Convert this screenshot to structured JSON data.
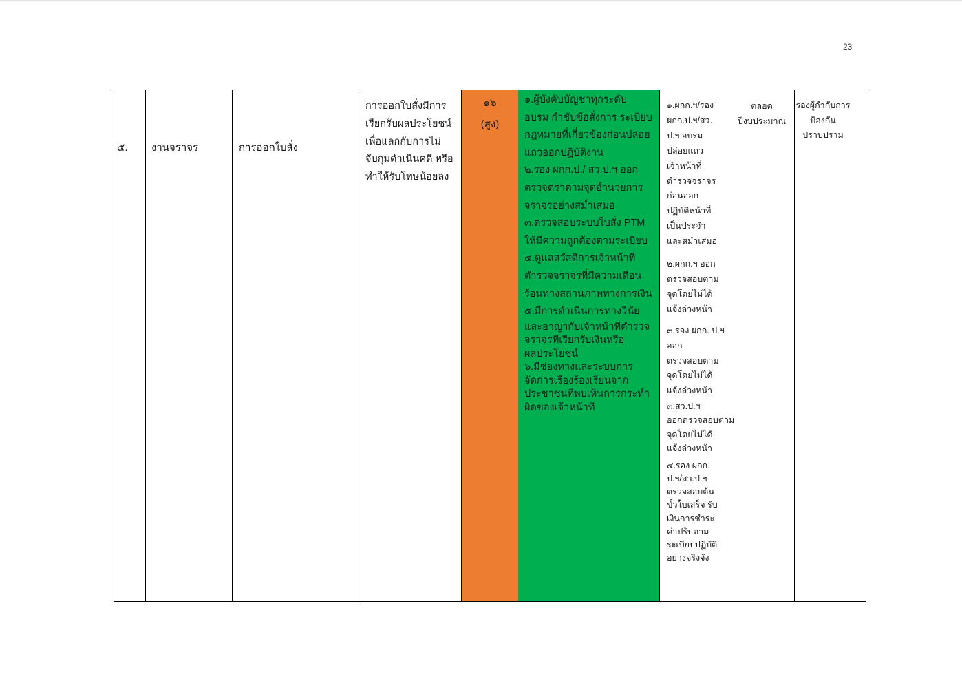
{
  "page": {
    "number": "23"
  },
  "colors": {
    "risk_high": "#ED7D31",
    "control_measures": "#00B050"
  },
  "row": {
    "no": "๕.",
    "mission": "งานจราจร",
    "process": "การออกใบสั่ง",
    "risk_event": [
      "การออกใบสั่งมีการ",
      "เรียกรับผลประโยชน์",
      "เพื่อแลกกับการไม่",
      "จับกุมดำเนินคดี หรือ",
      "ทำให้รับโทษน้อยลง"
    ],
    "risk_level": {
      "score": "๑๖",
      "label": "(สูง)"
    },
    "control_measures": [
      "๑.ผู้บังคับบัญชาทุกระดับ",
      "อบรม กำชับข้อสั่งการ ระเบียบ",
      "กฎหมายที่เกี่ยวข้องก่อนปล่อย",
      "แถวออกปฏิบัติงาน",
      "๒.รอง ผกก.ป./ สว.ป.ฯ ออก",
      "ตรวจตราตามจุดอำนวยการ",
      "จราจรอย่างสม่ำเสมอ",
      "๓.ตรวจสอบระบบใบสั่ง PTM",
      "ให้มีความถูกต้องตามระเบียบ",
      "๔.ดูแลสวัสดิการเจ้าหน้าที่",
      "ตำรวจจราจรที่มีความเดือน",
      "ร้อนทางสถานภาพทางการเงิน",
      "๕.มีการดำเนินการทางวินัย",
      "และอาญากับเจ้าหน้าที่ตำรวจ",
      "จราจรที่เรียกรับเงินหรือ",
      "ผลประโยชน์",
      "๖.มีช่องทางและระบบการ",
      "จัดการเรื่องร้องเรียนจาก",
      "ประชาชนที่พบเห็นการกระทำ",
      "ผิดของเจ้าหน้าที่"
    ],
    "actions": [
      [
        "๑.ผกก.ฯ/รอง",
        "ผกก.ป.ฯ/สว.",
        "ป.ฯ อบรม",
        "ปล่อยแถว",
        "เจ้าหน้าที่",
        "ตำรวจจราจร",
        "ก่อนออก",
        "ปฏิบัติหน้าที่",
        "เป็นประจำ",
        "และสม่ำเสมอ"
      ],
      [
        "๒.ผกก.ฯ ออก",
        "ตรวจสอบตาม",
        "จุดโดยไม่ได้",
        "แจ้งล่วงหน้า"
      ],
      [
        "๓.รอง ผกก. ป.ฯ",
        "ออก",
        "ตรวจสอบตาม",
        "จุดโดยไม่ได้",
        "แจ้งล่วงหน้า"
      ],
      [
        "๓.สว.ป.ฯ",
        "ออกตรวจสอบตาม",
        "จุดโดยไม่ได้",
        "แจ้งล่วงหน้า"
      ],
      [
        "๔.รอง ผกก.",
        "ป.ฯ/สว.ป.ฯ",
        "ตรวจสอบต้น",
        "ขั้วใบเสร็จ รับ",
        "เงินการชำระ",
        "ค่าปรับตาม",
        "ระเบียบปฏิบัติ",
        "อย่างจริงจัง"
      ]
    ],
    "timeframe": [
      "ตลอด",
      "ปีงบประมาณ"
    ],
    "owner": [
      "รองผู้กำกับการ",
      "ป้องกัน",
      "ปราบปราม"
    ]
  }
}
